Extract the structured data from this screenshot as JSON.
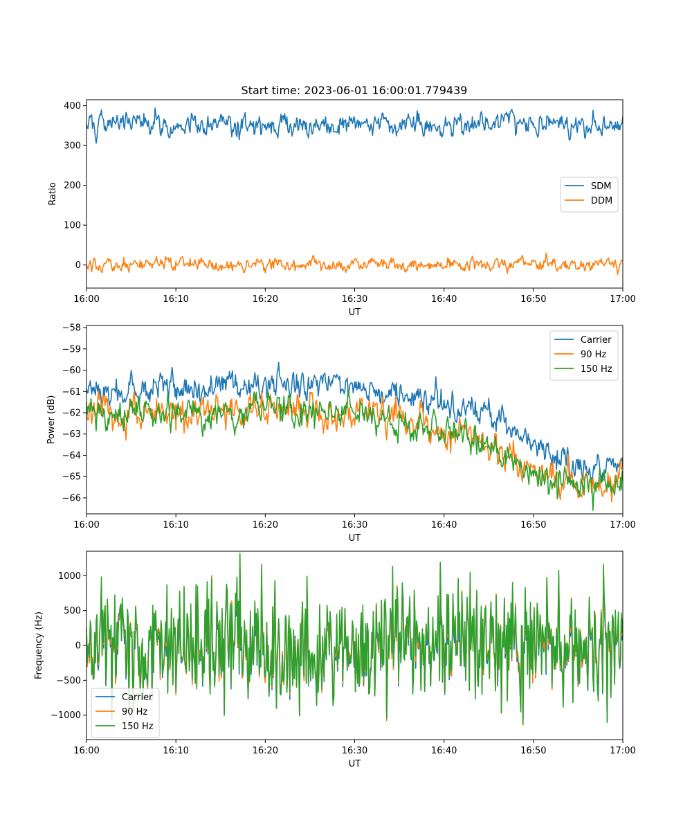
{
  "figure": {
    "title": "Start time: 2023-06-01 16:00:01.779439"
  },
  "colors": {
    "SDM": "#1f77b4",
    "DDM": "#ff7f0e",
    "Carrier": "#1f77b4",
    "90 Hz": "#ff7f0e",
    "150 Hz": "#2ca02c"
  },
  "chart_data": [
    {
      "type": "line",
      "title": "Start time: 2023-06-01 16:00:01.779439",
      "xlabel": "UT",
      "ylabel": "Ratio",
      "xlim": [
        "16:00",
        "17:00"
      ],
      "ylim": [
        -58,
        415
      ],
      "xticks": [
        "16:00",
        "16:10",
        "16:20",
        "16:30",
        "16:40",
        "16:50",
        "17:00"
      ],
      "yticks": [
        0,
        100,
        200,
        300,
        400
      ],
      "legend_position": "center-right",
      "series": [
        {
          "name": "SDM",
          "x": [
            "16:00",
            "16:05",
            "16:10",
            "16:15",
            "16:20",
            "16:25",
            "16:30",
            "16:35",
            "16:40",
            "16:45",
            "16:50",
            "16:55",
            "17:00"
          ],
          "values": [
            352,
            360,
            355,
            350,
            348,
            358,
            352,
            360,
            355,
            365,
            352,
            358,
            350
          ],
          "noise": 15
        },
        {
          "name": "DDM",
          "x": [
            "16:00",
            "16:05",
            "16:10",
            "16:15",
            "16:20",
            "16:25",
            "16:30",
            "16:35",
            "16:40",
            "16:45",
            "16:50",
            "16:55",
            "17:00"
          ],
          "values": [
            0,
            0,
            2,
            0,
            -2,
            3,
            0,
            2,
            -2,
            0,
            3,
            0,
            0
          ],
          "noise": 9
        }
      ]
    },
    {
      "type": "line",
      "xlabel": "UT",
      "ylabel": "Power (dB)",
      "xlim": [
        "16:00",
        "17:00"
      ],
      "ylim": [
        -66.75,
        -57.9
      ],
      "xticks": [
        "16:00",
        "16:10",
        "16:20",
        "16:30",
        "16:40",
        "16:50",
        "17:00"
      ],
      "yticks": [
        -58,
        -59,
        -60,
        -61,
        -62,
        -63,
        -64,
        -65,
        -66
      ],
      "yticklabels": [
        "−58",
        "−59",
        "−60",
        "−61",
        "−62",
        "−63",
        "−64",
        "−65",
        "−66"
      ],
      "legend_position": "top-right",
      "series": [
        {
          "name": "Carrier",
          "x": [
            "16:00",
            "16:05",
            "16:10",
            "16:15",
            "16:20",
            "16:25",
            "16:30",
            "16:35",
            "16:40",
            "16:45",
            "16:50",
            "16:55",
            "17:00"
          ],
          "values": [
            -61.0,
            -61.0,
            -60.8,
            -60.8,
            -60.5,
            -60.7,
            -60.6,
            -61.2,
            -61.6,
            -62.0,
            -63.5,
            -64.5,
            -64.5
          ],
          "noise": 0.35
        },
        {
          "name": "90 Hz",
          "x": [
            "16:00",
            "16:05",
            "16:10",
            "16:15",
            "16:20",
            "16:25",
            "16:30",
            "16:35",
            "16:40",
            "16:45",
            "16:50",
            "16:55",
            "17:00"
          ],
          "values": [
            -62.0,
            -62.0,
            -62.0,
            -62.0,
            -61.7,
            -61.9,
            -61.9,
            -62.4,
            -63.0,
            -63.4,
            -64.6,
            -65.4,
            -65.2
          ],
          "noise": 0.4
        },
        {
          "name": "150 Hz",
          "x": [
            "16:00",
            "16:05",
            "16:10",
            "16:15",
            "16:20",
            "16:25",
            "16:30",
            "16:35",
            "16:40",
            "16:45",
            "16:50",
            "16:55",
            "17:00"
          ],
          "values": [
            -62.0,
            -62.0,
            -62.0,
            -62.0,
            -61.7,
            -61.9,
            -61.9,
            -62.5,
            -62.9,
            -63.3,
            -64.9,
            -65.5,
            -65.3
          ],
          "noise": 0.4
        }
      ]
    },
    {
      "type": "line",
      "xlabel": "UT",
      "ylabel": "Frequency (Hz)",
      "xlim": [
        "16:00",
        "17:00"
      ],
      "ylim": [
        -1350,
        1350
      ],
      "xticks": [
        "16:00",
        "16:10",
        "16:20",
        "16:30",
        "16:40",
        "16:50",
        "17:00"
      ],
      "yticks": [
        1000,
        500,
        0,
        -500,
        -1000
      ],
      "yticklabels": [
        "1000",
        "500",
        "0",
        "−500",
        "−1000"
      ],
      "legend_position": "lower-left",
      "series": [
        {
          "name": "Carrier",
          "x": [
            "16:00",
            "16:05",
            "16:10",
            "16:15",
            "16:20",
            "16:25",
            "16:30",
            "16:35",
            "16:40",
            "16:45",
            "16:50",
            "16:55",
            "17:00"
          ],
          "values": [
            -60,
            -60,
            -60,
            -60,
            -60,
            -60,
            -60,
            -60,
            -60,
            -60,
            -60,
            -60,
            -60
          ],
          "noise": 380
        },
        {
          "name": "90 Hz",
          "x": [
            "16:00",
            "16:05",
            "16:10",
            "16:15",
            "16:20",
            "16:25",
            "16:30",
            "16:35",
            "16:40",
            "16:45",
            "16:50",
            "16:55",
            "17:00"
          ],
          "values": [
            -20,
            -20,
            -20,
            -20,
            -20,
            -20,
            -20,
            -20,
            -20,
            -20,
            -20,
            -20,
            -20
          ],
          "noise": 400
        },
        {
          "name": "150 Hz",
          "x": [
            "16:00",
            "16:05",
            "16:10",
            "16:15",
            "16:20",
            "16:25",
            "16:30",
            "16:35",
            "16:40",
            "16:45",
            "16:50",
            "16:55",
            "17:00"
          ],
          "values": [
            0,
            0,
            0,
            0,
            0,
            0,
            0,
            0,
            0,
            0,
            0,
            0,
            0
          ],
          "noise": 420
        }
      ]
    }
  ]
}
